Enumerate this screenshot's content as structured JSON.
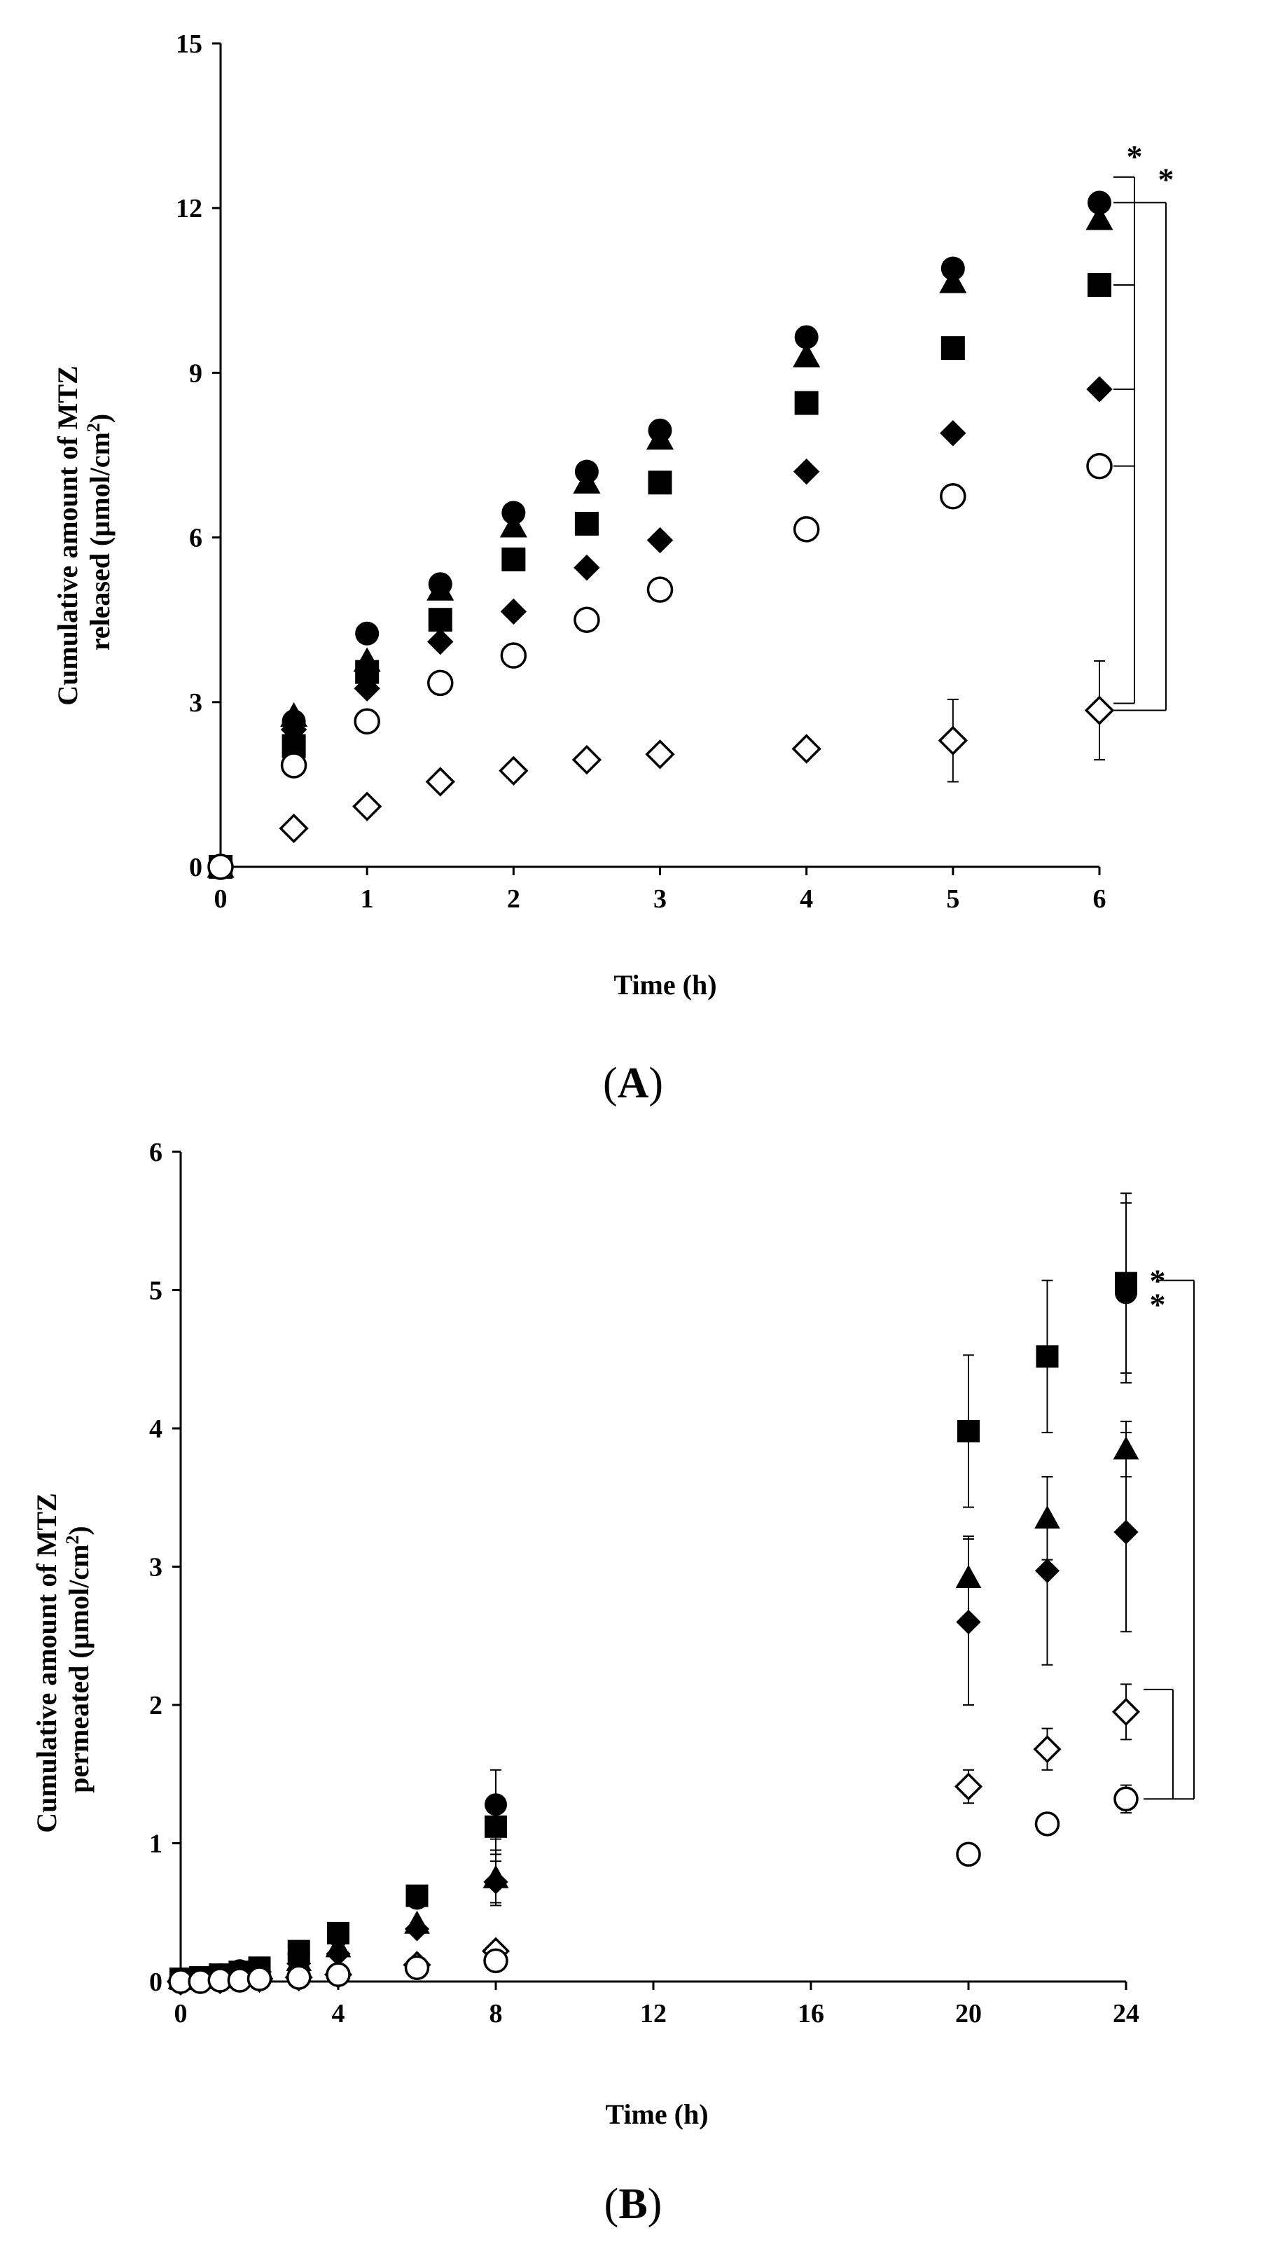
{
  "chart_data": [
    {
      "id": "A",
      "type": "scatter",
      "panel_label": "(A)",
      "panel_letter": "A",
      "xlabel": "Time (h)",
      "ylabel_line1": "Cumulative amount of MTZ",
      "ylabel_line2": "released (µmol/cm",
      "ylabel_sup": "2",
      "ylabel_close": ")",
      "xlim": [
        0,
        6
      ],
      "ylim": [
        0,
        15
      ],
      "xticks": [
        0,
        1,
        2,
        3,
        4,
        5,
        6
      ],
      "yticks": [
        0,
        3,
        6,
        9,
        12,
        15
      ],
      "grid": false,
      "series": [
        {
          "name": "filled-circle",
          "marker": "circle",
          "filled": true,
          "x": [
            0,
            0.5,
            1,
            1.5,
            2,
            2.5,
            3,
            4,
            5,
            6
          ],
          "y": [
            0,
            2.65,
            4.25,
            5.15,
            6.45,
            7.2,
            7.95,
            9.65,
            10.9,
            12.1
          ]
        },
        {
          "name": "filled-triangle",
          "marker": "triangle",
          "filled": true,
          "x": [
            0,
            0.5,
            1,
            1.5,
            2,
            2.5,
            3,
            4,
            5,
            6
          ],
          "y": [
            0,
            2.75,
            3.75,
            5.05,
            6.2,
            7.0,
            7.8,
            9.3,
            10.65,
            11.8
          ]
        },
        {
          "name": "filled-square",
          "marker": "square",
          "filled": true,
          "x": [
            0,
            0.5,
            1,
            1.5,
            2,
            2.5,
            3,
            4,
            5,
            6
          ],
          "y": [
            0,
            2.2,
            3.55,
            4.5,
            5.6,
            6.25,
            7.0,
            8.45,
            9.45,
            10.6
          ]
        },
        {
          "name": "filled-diamond",
          "marker": "diamond",
          "filled": true,
          "x": [
            0,
            0.5,
            1,
            1.5,
            2,
            2.5,
            3,
            4,
            5,
            6
          ],
          "y": [
            0,
            2.5,
            3.25,
            4.1,
            4.65,
            5.45,
            5.95,
            7.2,
            7.9,
            8.7
          ]
        },
        {
          "name": "open-circle",
          "marker": "circle",
          "filled": false,
          "x": [
            0,
            0.5,
            1,
            1.5,
            2,
            2.5,
            3,
            4,
            5,
            6
          ],
          "y": [
            0,
            1.85,
            2.65,
            3.35,
            3.85,
            4.5,
            5.05,
            6.15,
            6.75,
            7.3
          ],
          "err": [
            0,
            0.1,
            0.2,
            0.15,
            0.15,
            0.15,
            0.15,
            0.15,
            0.15,
            0.15
          ]
        },
        {
          "name": "open-diamond",
          "marker": "diamond",
          "filled": false,
          "x": [
            0.5,
            1,
            1.5,
            2,
            2.5,
            3,
            4,
            5,
            6
          ],
          "y": [
            0.7,
            1.1,
            1.55,
            1.75,
            1.95,
            2.05,
            2.15,
            2.3,
            2.85
          ],
          "err": [
            0,
            0,
            0,
            0,
            0,
            0,
            0.1,
            0.75,
            0.9
          ]
        }
      ],
      "significance": [
        {
          "label": "*",
          "target": "filled-circle"
        },
        {
          "label": "*",
          "target": "filled-triangle"
        }
      ]
    },
    {
      "id": "B",
      "type": "scatter",
      "panel_label": "(B)",
      "panel_letter": "B",
      "xlabel": "Time (h)",
      "ylabel_line1": "Cumulative amount of MTZ",
      "ylabel_line2": "permeated (µmol/cm",
      "ylabel_sup": "2",
      "ylabel_close": ")",
      "xlim": [
        0,
        24
      ],
      "ylim": [
        0,
        6
      ],
      "xticks": [
        0,
        4,
        8,
        12,
        16,
        20,
        24
      ],
      "yticks": [
        0,
        1,
        2,
        3,
        4,
        5,
        6
      ],
      "grid": false,
      "series": [
        {
          "name": "filled-circle",
          "marker": "circle",
          "filled": true,
          "x": [
            0,
            0.5,
            1,
            1.5,
            2,
            3,
            4,
            6,
            8,
            24
          ],
          "y": [
            0.02,
            0.03,
            0.05,
            0.08,
            0.1,
            0.2,
            0.33,
            0.6,
            1.28,
            4.98
          ],
          "err": [
            0,
            0,
            0,
            0,
            0,
            0,
            0,
            0,
            0.25,
            0.65
          ]
        },
        {
          "name": "filled-square",
          "marker": "square",
          "filled": true,
          "x": [
            0,
            0.5,
            1,
            1.5,
            2,
            3,
            4,
            6,
            8,
            20,
            22,
            24
          ],
          "y": [
            0.02,
            0.03,
            0.05,
            0.07,
            0.1,
            0.22,
            0.35,
            0.62,
            1.12,
            3.98,
            4.52,
            5.05
          ],
          "err": [
            0,
            0,
            0,
            0,
            0,
            0,
            0,
            0,
            0.2,
            0.55,
            0.55,
            0.65
          ]
        },
        {
          "name": "filled-triangle",
          "marker": "triangle",
          "filled": true,
          "x": [
            0,
            0.5,
            1,
            1.5,
            2,
            3,
            4,
            6,
            8,
            20,
            22,
            24
          ],
          "y": [
            0.02,
            0.02,
            0.04,
            0.06,
            0.08,
            0.15,
            0.25,
            0.42,
            0.75,
            2.92,
            3.35,
            3.85
          ],
          "err": [
            0,
            0,
            0,
            0,
            0,
            0,
            0,
            0,
            0.2,
            0.3,
            0.3,
            0.2
          ]
        },
        {
          "name": "filled-diamond",
          "marker": "diamond",
          "filled": true,
          "x": [
            0,
            0.5,
            1,
            1.5,
            2,
            3,
            4,
            6,
            8,
            20,
            22,
            24
          ],
          "y": [
            0.01,
            0.02,
            0.03,
            0.05,
            0.07,
            0.13,
            0.2,
            0.38,
            0.72,
            2.6,
            2.97,
            3.25
          ],
          "err": [
            0,
            0,
            0,
            0,
            0,
            0,
            0,
            0,
            0.15,
            0.6,
            0.68,
            0.72
          ]
        },
        {
          "name": "open-diamond",
          "marker": "diamond",
          "filled": false,
          "x": [
            0,
            0.5,
            1,
            1.5,
            2,
            3,
            4,
            6,
            8,
            20,
            22,
            24
          ],
          "y": [
            0,
            0.01,
            0.01,
            0.02,
            0.02,
            0.03,
            0.05,
            0.12,
            0.22,
            1.41,
            1.68,
            1.95
          ],
          "err": [
            0,
            0,
            0,
            0,
            0,
            0,
            0,
            0,
            0,
            0.12,
            0.15,
            0.2
          ]
        },
        {
          "name": "open-circle",
          "marker": "circle",
          "filled": false,
          "x": [
            0,
            0.5,
            1,
            1.5,
            2,
            3,
            4,
            6,
            8,
            20,
            22,
            24
          ],
          "y": [
            0,
            0,
            0.01,
            0.01,
            0.02,
            0.03,
            0.05,
            0.1,
            0.15,
            0.92,
            1.14,
            1.32
          ],
          "err": [
            0,
            0,
            0,
            0,
            0,
            0,
            0,
            0,
            0,
            0.05,
            0.05,
            0.1
          ]
        }
      ],
      "significance": [
        {
          "label": "*",
          "target": "filled-square"
        },
        {
          "label": "*",
          "target": "filled-circle"
        }
      ]
    }
  ]
}
